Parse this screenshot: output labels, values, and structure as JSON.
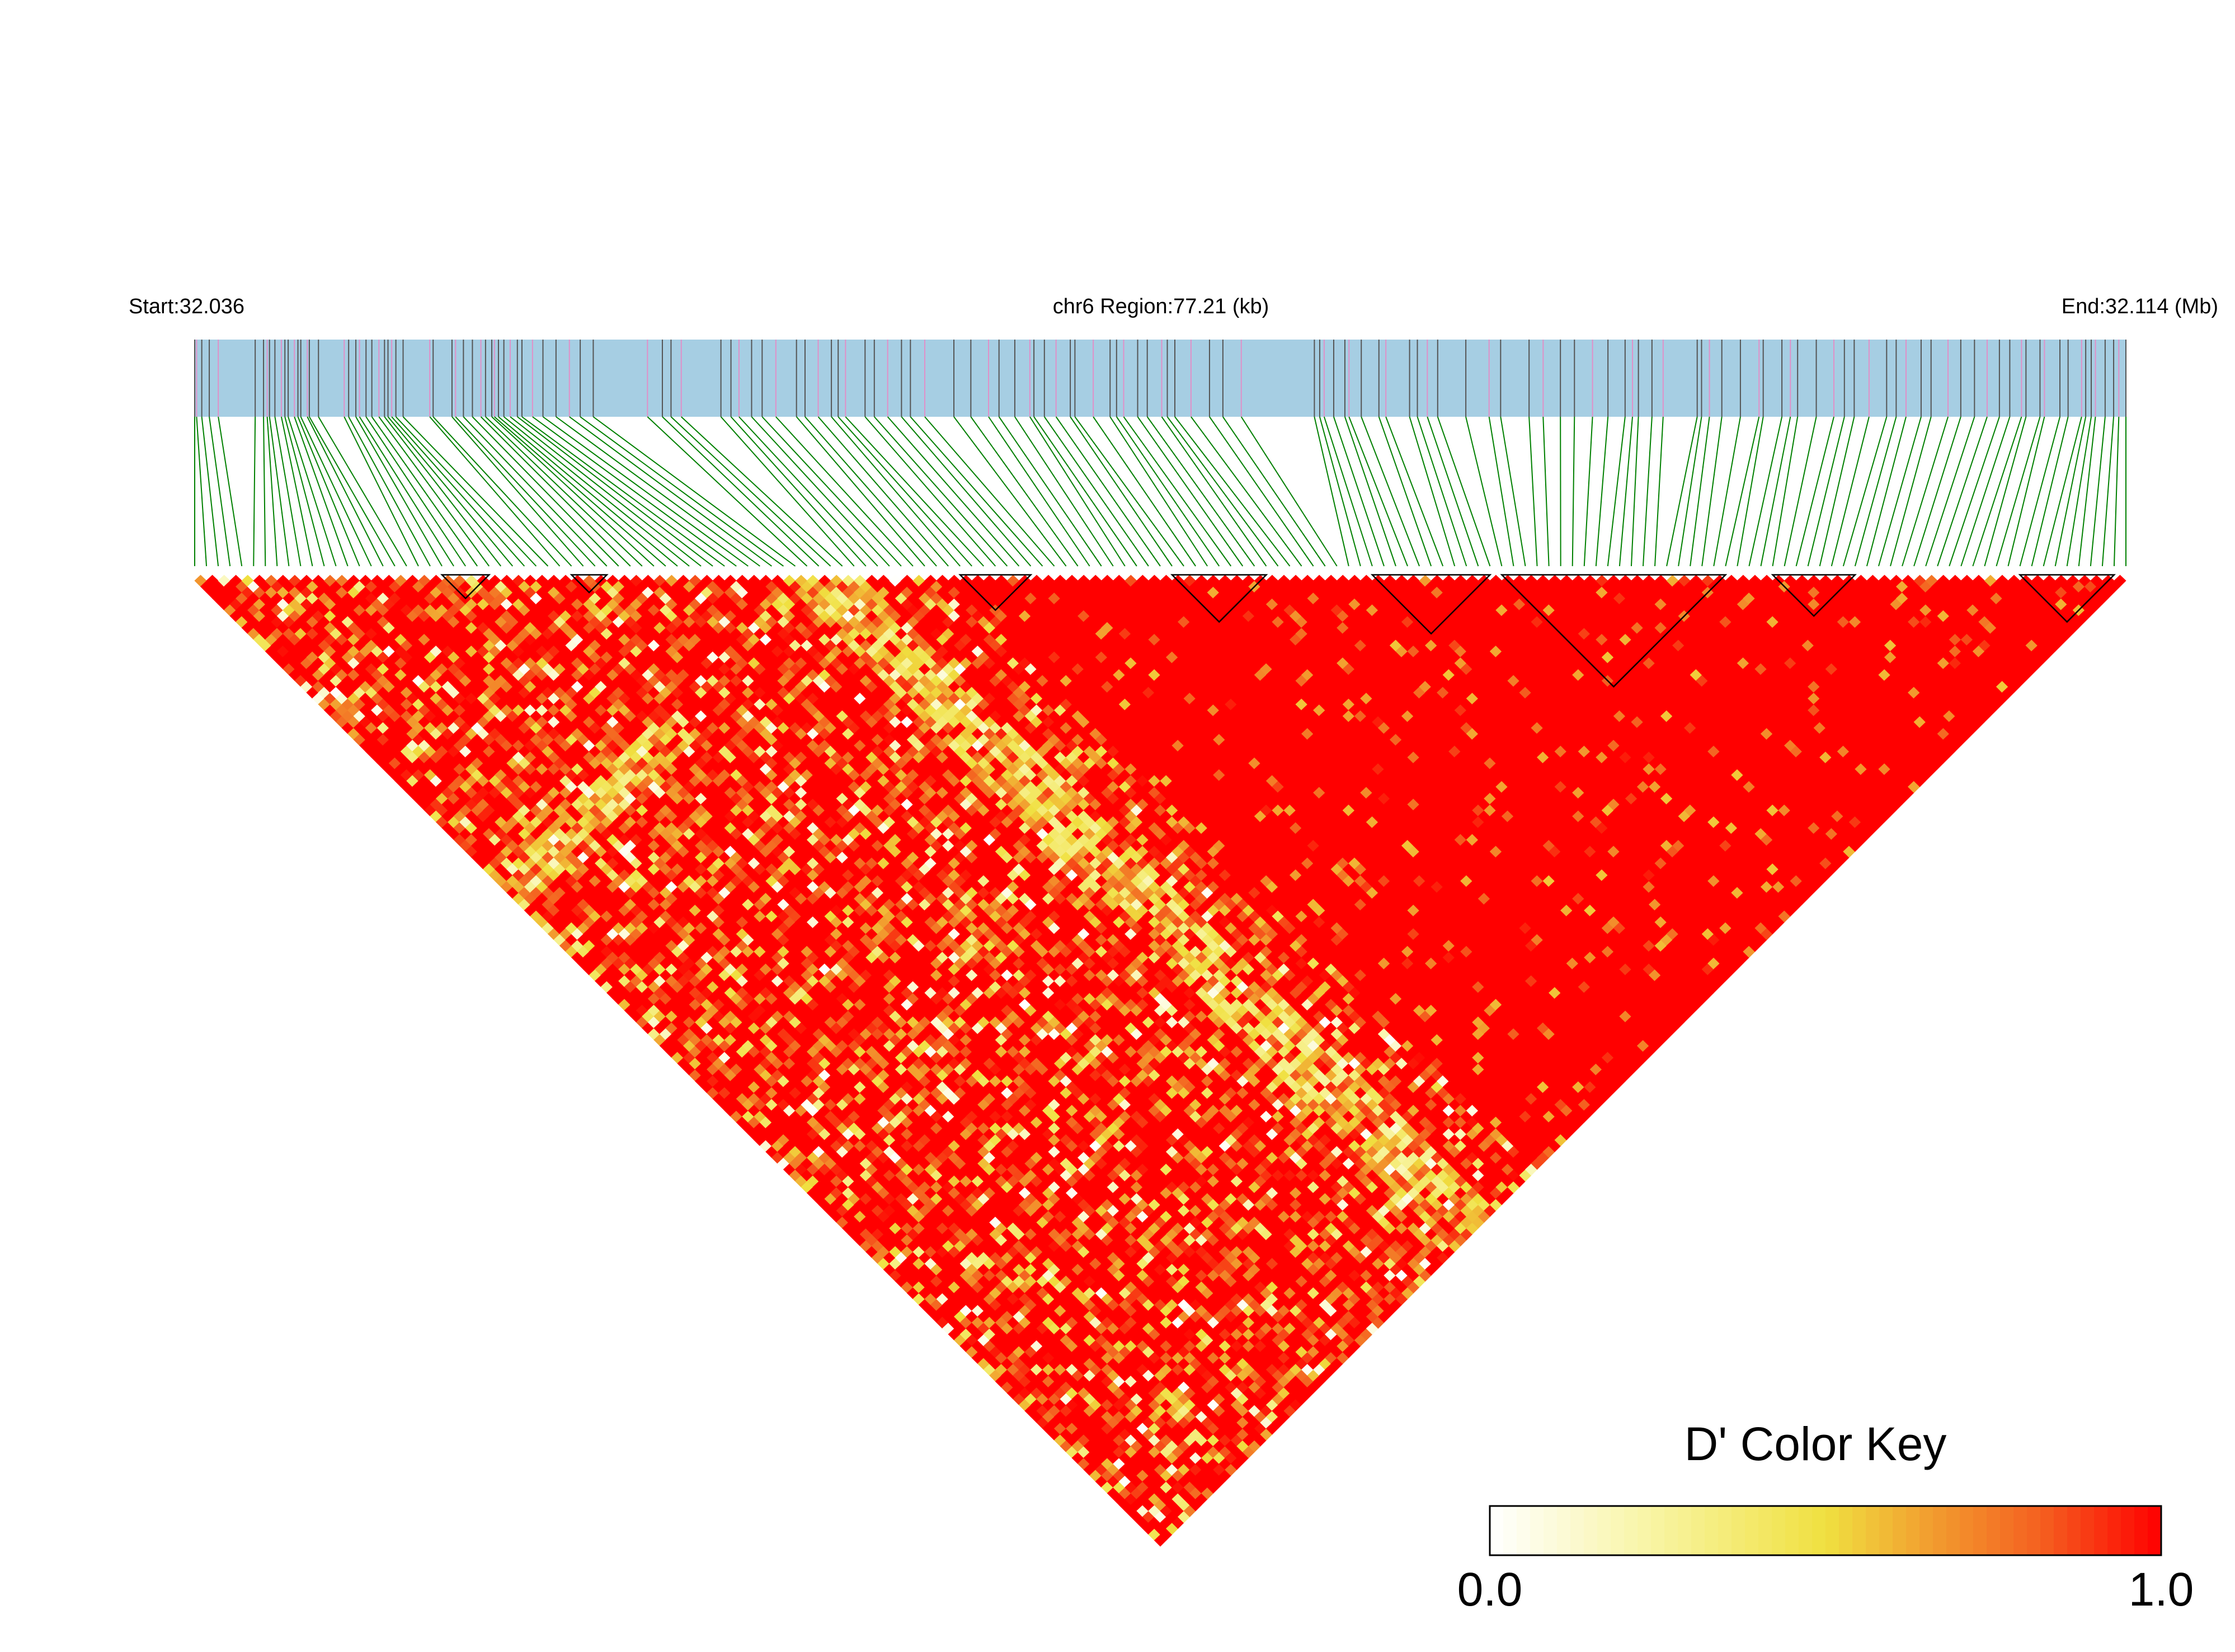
{
  "chart_data": {
    "type": "heatmap",
    "subtype": "LD triangle heatmap (pairwise D')",
    "chromosome": "chr6",
    "start_label": "Start:32.036",
    "region_label": "chr6 Region:77.21 (kb)",
    "end_label": "End:32.114 (Mb)",
    "start_mb": 32.036,
    "end_mb": 32.114,
    "region_kb": 77.21,
    "n_snps": 165,
    "value_range": [
      0.0,
      1.0
    ],
    "dominant_value": 1.0,
    "high_ld_segments": [
      {
        "from_snp": 64,
        "to_snp": 164,
        "mean_dprime": 0.97
      },
      {
        "from_snp": 0,
        "to_snp": 54,
        "mean_dprime": 0.85
      },
      {
        "from_snp": 54,
        "to_snp": 164,
        "mean_dprime": 0.9
      }
    ],
    "ld_blocks": [
      {
        "from_snp": 21,
        "to_snp": 25
      },
      {
        "from_snp": 32,
        "to_snp": 35
      },
      {
        "from_snp": 65,
        "to_snp": 71
      },
      {
        "from_snp": 83,
        "to_snp": 91
      },
      {
        "from_snp": 100,
        "to_snp": 110
      },
      {
        "from_snp": 111,
        "to_snp": 130
      },
      {
        "from_snp": 134,
        "to_snp": 141
      },
      {
        "from_snp": 155,
        "to_snp": 163
      }
    ],
    "color_key": {
      "title": "D' Color Key",
      "min_label": "0.0",
      "max_label": "1.0",
      "colors": [
        "#ffffff",
        "#f5f07a",
        "#f0e040",
        "#f2a030",
        "#f46020",
        "#ff0000"
      ]
    },
    "colors": {
      "track_fill": "#a6cee3",
      "snp_tick_dark": "#555555",
      "snp_tick_pink": "#e090c8",
      "connector": "#008000",
      "high_ld": "#ff0000",
      "block_outline": "#000000"
    }
  }
}
